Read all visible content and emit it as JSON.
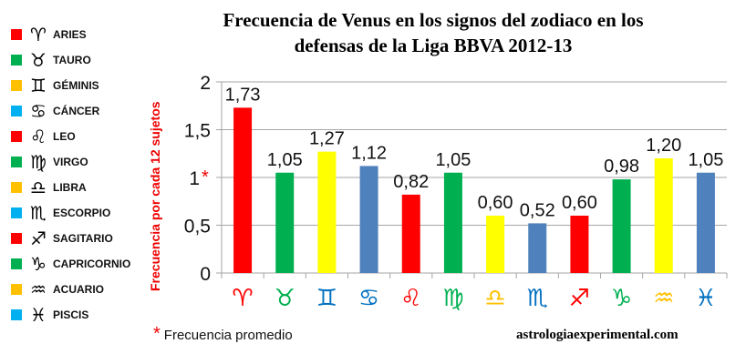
{
  "chart_data": {
    "type": "bar",
    "title": "Frecuencia de Venus en los signos del zodiaco en los defensas de la Liga BBVA 2012-13",
    "title_lines": [
      "Frecuencia de Venus en los signos del zodiaco en los",
      "defensas de la Liga BBVA 2012-13"
    ],
    "ylabel": "Frecuencia por cada 12 sujetos",
    "ylim": [
      0,
      2
    ],
    "yticks": [
      "0",
      "0,5",
      "1",
      "1,5",
      "2"
    ],
    "ytick_marker": "*",
    "grid": true,
    "categories": [
      "♈",
      "♉",
      "♊",
      "♋",
      "♌",
      "♍",
      "♎",
      "♏",
      "♐",
      "♑",
      "♒",
      "♓"
    ],
    "category_colors": [
      "#ff0000",
      "#00b050",
      "#0070c0",
      "#0070c0",
      "#ff0000",
      "#00b050",
      "#ffc000",
      "#0070c0",
      "#ff0000",
      "#00b050",
      "#ffc000",
      "#0070c0"
    ],
    "values": [
      1.73,
      1.05,
      1.27,
      1.12,
      0.82,
      1.05,
      0.6,
      0.52,
      0.6,
      0.98,
      1.2,
      1.05
    ],
    "value_labels": [
      "1,73",
      "1,05",
      "1,27",
      "1,12",
      "0,82",
      "1,05",
      "0,60",
      "0,52",
      "0,60",
      "0,98",
      "1,20",
      "1,05"
    ],
    "bar_colors": [
      "#ff0000",
      "#00b050",
      "#ffff00",
      "#4f81bd",
      "#ff0000",
      "#00b050",
      "#ffff00",
      "#4f81bd",
      "#ff0000",
      "#00b050",
      "#ffff00",
      "#4f81bd"
    ]
  },
  "legend": [
    {
      "symbol": "♈",
      "label": "ARIES",
      "color": "#ff0000"
    },
    {
      "symbol": "♉",
      "label": "TAURO",
      "color": "#00b050"
    },
    {
      "symbol": "♊",
      "label": "GÉMINIS",
      "color": "#ffc000"
    },
    {
      "symbol": "♋",
      "label": "CÁNCER",
      "color": "#00b0f0"
    },
    {
      "symbol": "♌",
      "label": "LEO",
      "color": "#ff0000"
    },
    {
      "symbol": "♍",
      "label": "VIRGO",
      "color": "#00b050"
    },
    {
      "symbol": "♎",
      "label": "LIBRA",
      "color": "#ffc000"
    },
    {
      "symbol": "♏",
      "label": "ESCORPIO",
      "color": "#00b0f0"
    },
    {
      "symbol": "♐",
      "label": "SAGITARIO",
      "color": "#ff0000"
    },
    {
      "symbol": "♑",
      "label": "CAPRICORNIO",
      "color": "#00b050"
    },
    {
      "symbol": "♒",
      "label": "ACUARIO",
      "color": "#ffc000"
    },
    {
      "symbol": "♓",
      "label": "PISCIS",
      "color": "#00b0f0"
    }
  ],
  "footnote": {
    "marker": "*",
    "text": "Frecuencia promedio"
  },
  "site": "astrologiaexperimental.com"
}
